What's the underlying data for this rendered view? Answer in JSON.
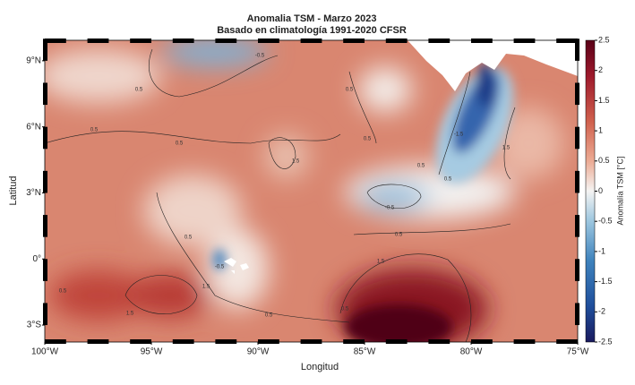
{
  "map": {
    "title": "Anomalia TSM - Marzo 2023",
    "subtitle": "Basado en climatología 1991-2020 CFSR",
    "xlabel": "Longitud",
    "ylabel": "Latitud",
    "xlim": [
      -100,
      -75
    ],
    "ylim": [
      -3.77,
      9.93
    ],
    "xticks": [
      {
        "value": -100,
        "label": "100°W"
      },
      {
        "value": -95,
        "label": "95°W"
      },
      {
        "value": -90,
        "label": "90°W"
      },
      {
        "value": -85,
        "label": "85°W"
      },
      {
        "value": -80,
        "label": "80°W"
      },
      {
        "value": -75,
        "label": "75°W"
      }
    ],
    "yticks": [
      {
        "value": 9,
        "label": "9°N"
      },
      {
        "value": 6,
        "label": "6°N"
      },
      {
        "value": 3,
        "label": "3°N"
      },
      {
        "value": 0,
        "label": "0°"
      },
      {
        "value": -3,
        "label": "3°S"
      }
    ],
    "colorbar": {
      "label": "Anomalía TSM [°C]",
      "lim": [
        -2.5,
        2.5
      ],
      "ticks": [
        2.5,
        2,
        1.5,
        1,
        0.5,
        0,
        -0.5,
        -1,
        -1.5,
        -2,
        -2.5
      ]
    },
    "contour_labels": [
      -0.5,
      0.5,
      0.5,
      0.5,
      0.5,
      0.5,
      0.5,
      0.5,
      -0.5,
      1.5,
      -1.5,
      0.5,
      0.5,
      1.5,
      0.5,
      0.5,
      1.5,
      1.5,
      0.5,
      -0.5,
      1.5
    ]
  }
}
